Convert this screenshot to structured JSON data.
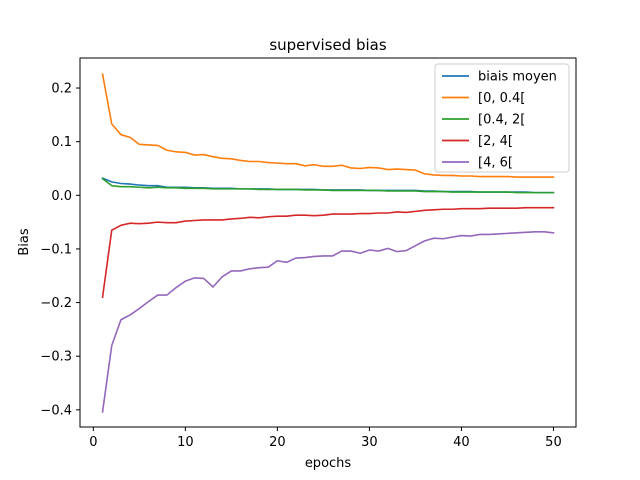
{
  "chart_data": {
    "type": "line",
    "title": "supervised bias",
    "xlabel": "epochs",
    "ylabel": "Bias",
    "xlim": [
      -1.45,
      52.45
    ],
    "ylim": [
      -0.432,
      0.256
    ],
    "xticks": [
      0,
      10,
      20,
      30,
      40,
      50
    ],
    "yticks": [
      -0.4,
      -0.3,
      -0.2,
      -0.1,
      0.0,
      0.1,
      0.2
    ],
    "ytick_labels": [
      "−0.4",
      "−0.3",
      "−0.2",
      "−0.1",
      "0.0",
      "0.1",
      "0.2"
    ],
    "grid": false,
    "legend_position": "top-right",
    "series": [
      {
        "name": "biais moyen",
        "color": "#1f77b4",
        "x": [
          1,
          2,
          3,
          4,
          5,
          6,
          7,
          8,
          9,
          10,
          11,
          12,
          13,
          14,
          15,
          16,
          17,
          18,
          19,
          20,
          21,
          22,
          23,
          24,
          25,
          26,
          27,
          28,
          29,
          30,
          31,
          32,
          33,
          34,
          35,
          36,
          37,
          38,
          39,
          40,
          41,
          42,
          43,
          44,
          45,
          46,
          47,
          48,
          49,
          50
        ],
        "y": [
          0.032,
          0.025,
          0.022,
          0.021,
          0.019,
          0.018,
          0.018,
          0.015,
          0.015,
          0.015,
          0.014,
          0.014,
          0.013,
          0.013,
          0.013,
          0.012,
          0.012,
          0.012,
          0.012,
          0.011,
          0.011,
          0.011,
          0.011,
          0.011,
          0.01,
          0.01,
          0.01,
          0.01,
          0.01,
          0.009,
          0.009,
          0.009,
          0.009,
          0.009,
          0.009,
          0.008,
          0.008,
          0.007,
          0.007,
          0.007,
          0.007,
          0.006,
          0.006,
          0.006,
          0.006,
          0.006,
          0.006,
          0.005,
          0.005,
          0.005
        ]
      },
      {
        "name": "[0, 0.4[",
        "color": "#ff7f0e",
        "x": [
          1,
          2,
          3,
          4,
          5,
          6,
          7,
          8,
          9,
          10,
          11,
          12,
          13,
          14,
          15,
          16,
          17,
          18,
          19,
          20,
          21,
          22,
          23,
          24,
          25,
          26,
          27,
          28,
          29,
          30,
          31,
          32,
          33,
          34,
          35,
          36,
          37,
          38,
          39,
          40,
          41,
          42,
          43,
          44,
          45,
          46,
          47,
          48,
          49,
          50
        ],
        "y": [
          0.226,
          0.133,
          0.113,
          0.108,
          0.095,
          0.094,
          0.093,
          0.084,
          0.081,
          0.08,
          0.075,
          0.076,
          0.072,
          0.069,
          0.068,
          0.065,
          0.063,
          0.063,
          0.061,
          0.06,
          0.059,
          0.059,
          0.055,
          0.057,
          0.054,
          0.054,
          0.056,
          0.051,
          0.05,
          0.052,
          0.051,
          0.048,
          0.049,
          0.048,
          0.047,
          0.04,
          0.038,
          0.037,
          0.037,
          0.036,
          0.036,
          0.035,
          0.035,
          0.035,
          0.035,
          0.034,
          0.034,
          0.034,
          0.034,
          0.034
        ]
      },
      {
        "name": "[0.4, 2[",
        "color": "#2ca02c",
        "x": [
          1,
          2,
          3,
          4,
          5,
          6,
          7,
          8,
          9,
          10,
          11,
          12,
          13,
          14,
          15,
          16,
          17,
          18,
          19,
          20,
          21,
          22,
          23,
          24,
          25,
          26,
          27,
          28,
          29,
          30,
          31,
          32,
          33,
          34,
          35,
          36,
          37,
          38,
          39,
          40,
          41,
          42,
          43,
          44,
          45,
          46,
          47,
          48,
          49,
          50
        ],
        "y": [
          0.031,
          0.018,
          0.016,
          0.016,
          0.015,
          0.014,
          0.015,
          0.014,
          0.014,
          0.013,
          0.013,
          0.013,
          0.012,
          0.012,
          0.012,
          0.012,
          0.012,
          0.011,
          0.011,
          0.011,
          0.011,
          0.011,
          0.01,
          0.01,
          0.01,
          0.009,
          0.009,
          0.009,
          0.009,
          0.009,
          0.009,
          0.008,
          0.008,
          0.008,
          0.008,
          0.007,
          0.007,
          0.007,
          0.006,
          0.006,
          0.006,
          0.006,
          0.006,
          0.006,
          0.006,
          0.005,
          0.005,
          0.005,
          0.005,
          0.005
        ]
      },
      {
        "name": "[2, 4[",
        "color": "#d62728",
        "x": [
          1,
          2,
          3,
          4,
          5,
          6,
          7,
          8,
          9,
          10,
          11,
          12,
          13,
          14,
          15,
          16,
          17,
          18,
          19,
          20,
          21,
          22,
          23,
          24,
          25,
          26,
          27,
          28,
          29,
          30,
          31,
          32,
          33,
          34,
          35,
          36,
          37,
          38,
          39,
          40,
          41,
          42,
          43,
          44,
          45,
          46,
          47,
          48,
          49,
          50
        ],
        "y": [
          -0.19,
          -0.065,
          -0.056,
          -0.052,
          -0.053,
          -0.052,
          -0.05,
          -0.051,
          -0.051,
          -0.048,
          -0.047,
          -0.046,
          -0.046,
          -0.046,
          -0.044,
          -0.043,
          -0.041,
          -0.042,
          -0.04,
          -0.039,
          -0.039,
          -0.037,
          -0.037,
          -0.038,
          -0.037,
          -0.035,
          -0.035,
          -0.035,
          -0.034,
          -0.034,
          -0.033,
          -0.033,
          -0.031,
          -0.032,
          -0.03,
          -0.028,
          -0.027,
          -0.026,
          -0.026,
          -0.025,
          -0.025,
          -0.025,
          -0.024,
          -0.024,
          -0.024,
          -0.024,
          -0.023,
          -0.023,
          -0.023,
          -0.023
        ]
      },
      {
        "name": "[4, 6[",
        "color": "#9467bd",
        "x": [
          1,
          2,
          3,
          4,
          5,
          6,
          7,
          8,
          9,
          10,
          11,
          12,
          13,
          14,
          15,
          16,
          17,
          18,
          19,
          20,
          21,
          22,
          23,
          24,
          25,
          26,
          27,
          28,
          29,
          30,
          31,
          32,
          33,
          34,
          35,
          36,
          37,
          38,
          39,
          40,
          41,
          42,
          43,
          44,
          45,
          46,
          47,
          48,
          49,
          50
        ],
        "y": [
          -0.404,
          -0.28,
          -0.232,
          -0.223,
          -0.211,
          -0.198,
          -0.186,
          -0.186,
          -0.172,
          -0.16,
          -0.154,
          -0.155,
          -0.171,
          -0.152,
          -0.141,
          -0.141,
          -0.137,
          -0.135,
          -0.134,
          -0.122,
          -0.125,
          -0.117,
          -0.116,
          -0.114,
          -0.113,
          -0.113,
          -0.104,
          -0.104,
          -0.108,
          -0.102,
          -0.104,
          -0.099,
          -0.105,
          -0.103,
          -0.094,
          -0.085,
          -0.08,
          -0.081,
          -0.078,
          -0.075,
          -0.076,
          -0.073,
          -0.073,
          -0.072,
          -0.071,
          -0.07,
          -0.069,
          -0.068,
          -0.068,
          -0.07
        ]
      }
    ]
  }
}
